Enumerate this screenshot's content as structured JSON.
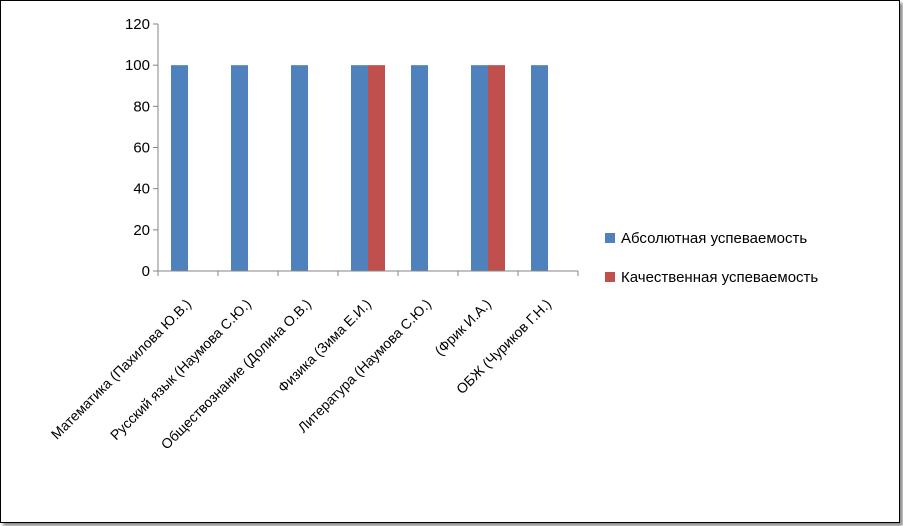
{
  "chart_data": {
    "type": "bar",
    "title": "",
    "xlabel": "",
    "ylabel": "",
    "ylim": [
      0,
      120
    ],
    "yticks": [
      0,
      20,
      40,
      60,
      80,
      100,
      120
    ],
    "grid": false,
    "legend_position": "right",
    "categories": [
      "Математика  (Пахилова Ю.В.)",
      "Русский язык (Наумова С.Ю.)",
      "Обществознание (Долина О.В.)",
      "Физика (Зима Е.И.)",
      "Литература (Наумова С.Ю.)",
      "(Фрик И.А.)",
      "ОБЖ (Чуриков Г.Н.)"
    ],
    "series": [
      {
        "name": "Абсолютная успеваемость",
        "color": "#4F81BD",
        "values": [
          100,
          100,
          100,
          100,
          100,
          100,
          100
        ]
      },
      {
        "name": "Качественная успеваемость",
        "color": "#C0504D",
        "values": [
          0,
          0,
          0,
          100,
          0,
          100,
          0
        ]
      }
    ]
  }
}
